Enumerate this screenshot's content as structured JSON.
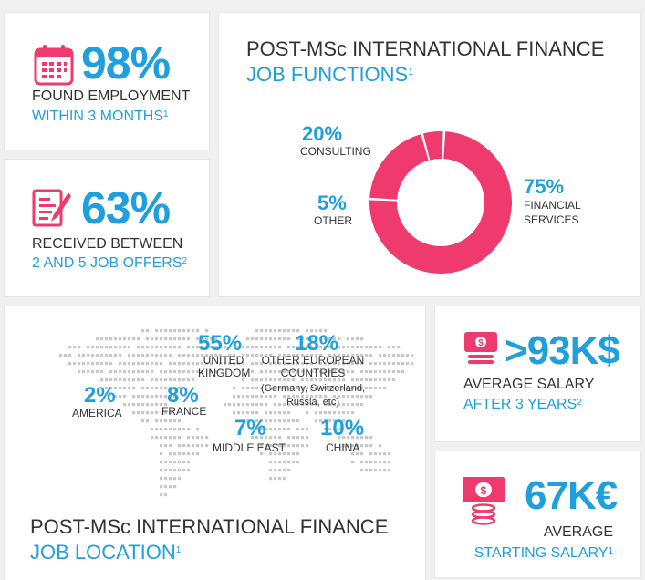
{
  "stat1": {
    "value": "98%",
    "line1": "FOUND EMPLOYMENT",
    "line2": "WITHIN 3 MONTHS",
    "note": "1",
    "icon": "calendar-icon"
  },
  "stat2": {
    "value": "63%",
    "line1": "RECEIVED BETWEEN",
    "line2": "2 AND 5 JOB OFFERS",
    "note": "2",
    "icon": "document-pen-icon"
  },
  "functions": {
    "title1": "POST-MSc INTERNATIONAL FINANCE",
    "title2": "JOB FUNCTIONS",
    "note": "1",
    "consulting_pct": "20%",
    "consulting_label": "CONSULTING",
    "other_pct": "5%",
    "other_label": "OTHER",
    "financial_pct": "75%",
    "financial_label1": "FINANCIAL",
    "financial_label2": "SERVICES"
  },
  "location": {
    "title1": "POST-MSc INTERNATIONAL FINANCE",
    "title2": "JOB LOCATION",
    "note": "1",
    "uk_pct": "55%",
    "uk_label1": "UNITED",
    "uk_label2": "KINGDOM",
    "eu_pct": "18%",
    "eu_label1": "OTHER EUROPEAN",
    "eu_label2": "COUNTRIES",
    "eu_label3": "(Germany, Switzerland,",
    "eu_label4": "Russia, etc)",
    "am_pct": "2%",
    "am_label": "AMERICA",
    "fr_pct": "8%",
    "fr_label": "FRANCE",
    "me_pct": "7%",
    "me_label": "MIDDLE EAST",
    "cn_pct": "10%",
    "cn_label": "CHINA"
  },
  "stat3": {
    "value": ">93K$",
    "line1": "AVERAGE SALARY",
    "line2": "AFTER 3 YEARS",
    "note": "2",
    "icon": "money-icon"
  },
  "stat4": {
    "value": "67K€",
    "line1": "AVERAGE",
    "line2": "STARTING SALARY",
    "note": "1",
    "icon": "money-coins-icon"
  },
  "chart_data": {
    "type": "pie",
    "categories": [
      "FINANCIAL SERVICES",
      "CONSULTING",
      "OTHER"
    ],
    "values": [
      75,
      20,
      5
    ],
    "colors": [
      "#ee3a6d",
      "#ee3a6d",
      "#ee3a6d"
    ]
  },
  "colors": {
    "accent_blue": "#1fa0dc",
    "accent_pink": "#ee3a6d",
    "text": "#333333"
  }
}
